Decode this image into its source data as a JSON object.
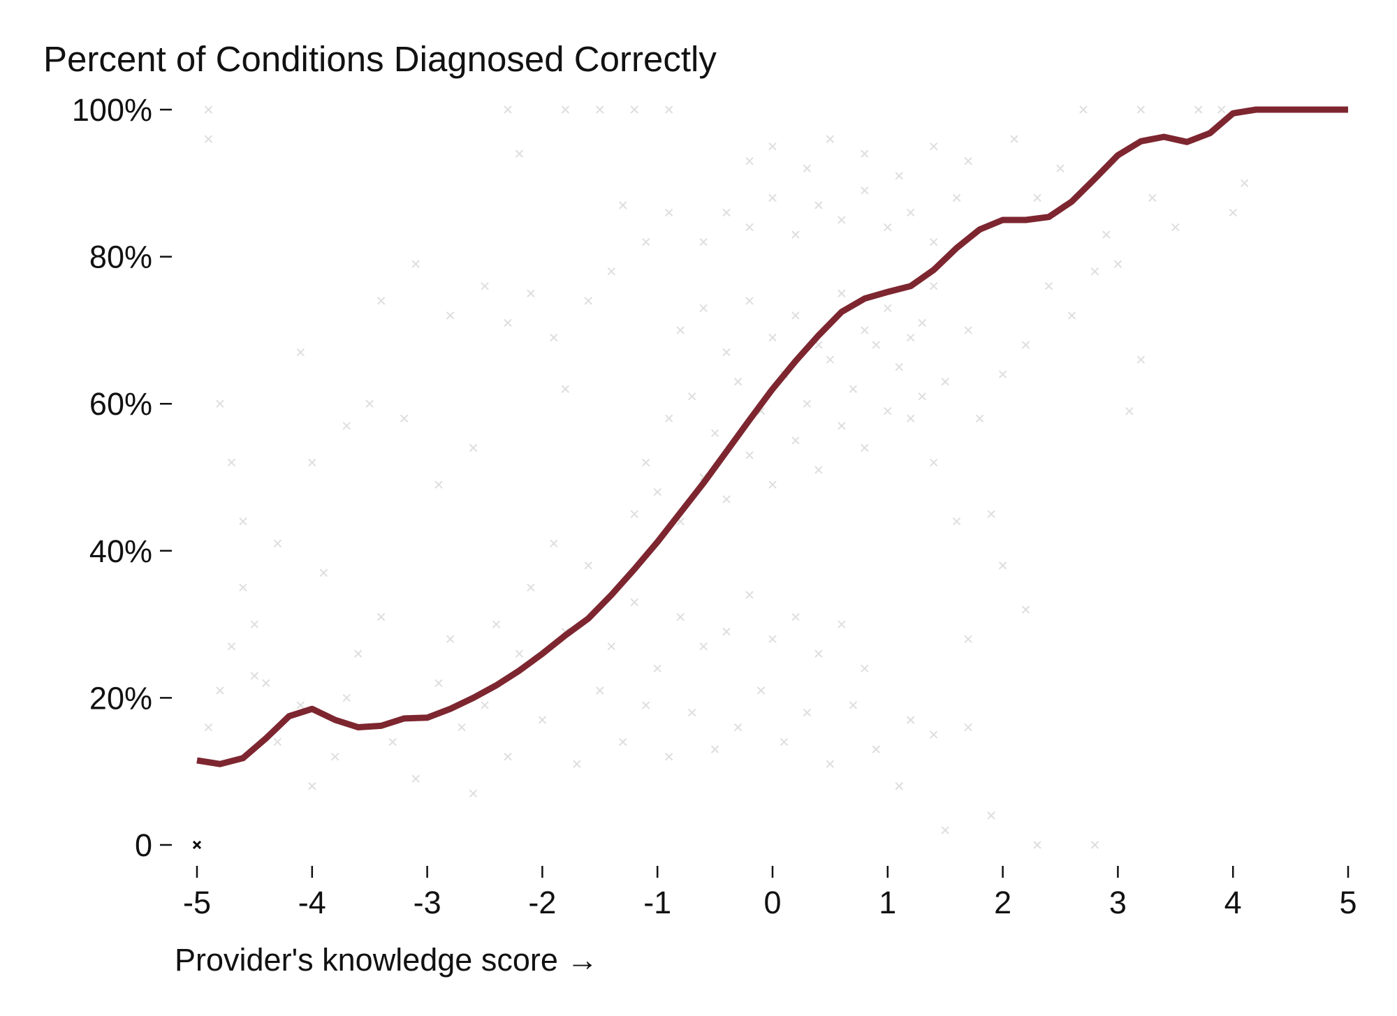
{
  "chart_data": {
    "type": "scatter",
    "title": "Percent of Conditions Diagnosed Correctly",
    "xlabel": "Provider's knowledge score →",
    "ylabel": "",
    "xlim": [
      -5,
      5
    ],
    "ylim": [
      0,
      100
    ],
    "x_ticks": [
      {
        "value": -5,
        "label": "-5"
      },
      {
        "value": -4,
        "label": "-4"
      },
      {
        "value": -3,
        "label": "-3"
      },
      {
        "value": -2,
        "label": "-2"
      },
      {
        "value": -1,
        "label": "-1"
      },
      {
        "value": 0,
        "label": "0"
      },
      {
        "value": 1,
        "label": "1"
      },
      {
        "value": 2,
        "label": "2"
      },
      {
        "value": 3,
        "label": "3"
      },
      {
        "value": 4,
        "label": "4"
      },
      {
        "value": 5,
        "label": "5"
      }
    ],
    "y_ticks": [
      {
        "value": 0,
        "label": "0"
      },
      {
        "value": 20,
        "label": "20%"
      },
      {
        "value": 40,
        "label": "40%"
      },
      {
        "value": 60,
        "label": "60%"
      },
      {
        "value": 80,
        "label": "80%"
      },
      {
        "value": 100,
        "label": "100%"
      }
    ],
    "grid": false,
    "legend": "none",
    "scatter_marker": "x",
    "scatter_color": "#000000",
    "trend_color": "#7d2630",
    "scatter_points": [
      [
        -4.9,
        96
      ],
      [
        -4.8,
        60
      ],
      [
        -4.7,
        52
      ],
      [
        -4.6,
        44
      ],
      [
        -4.5,
        30
      ],
      [
        -4.4,
        22
      ],
      [
        -4.3,
        41
      ],
      [
        -4.1,
        67
      ],
      [
        -4.0,
        52
      ],
      [
        -3.9,
        37
      ],
      [
        -3.7,
        57
      ],
      [
        -3.5,
        60
      ],
      [
        -3.4,
        74
      ],
      [
        -3.2,
        58
      ],
      [
        -3.1,
        79
      ],
      [
        -2.9,
        49
      ],
      [
        -2.8,
        72
      ],
      [
        -2.6,
        54
      ],
      [
        -2.5,
        76
      ],
      [
        -2.3,
        71
      ],
      [
        -2.1,
        75
      ],
      [
        -1.9,
        69
      ],
      [
        -1.8,
        62
      ],
      [
        -1.6,
        74
      ],
      [
        -1.4,
        78
      ],
      [
        -1.3,
        87
      ],
      [
        -1.1,
        82
      ],
      [
        -0.9,
        86
      ],
      [
        -2.2,
        94
      ],
      [
        -2.3,
        100
      ],
      [
        -1.8,
        100
      ],
      [
        -1.5,
        100
      ],
      [
        -1.2,
        100
      ],
      [
        -0.9,
        100
      ],
      [
        -4.9,
        100
      ],
      [
        2.1,
        96
      ],
      [
        2.5,
        92
      ],
      [
        2.7,
        100
      ],
      [
        3.2,
        100
      ],
      [
        3.7,
        100
      ],
      [
        3.9,
        100
      ],
      [
        4.1,
        90
      ],
      [
        4.0,
        86
      ],
      [
        3.5,
        84
      ],
      [
        3.3,
        88
      ],
      [
        3.0,
        79
      ],
      [
        2.9,
        83
      ],
      [
        2.6,
        72
      ],
      [
        2.4,
        76
      ],
      [
        2.2,
        68
      ],
      [
        2.0,
        64
      ],
      [
        1.8,
        58
      ],
      [
        3.1,
        59
      ],
      [
        3.2,
        66
      ],
      [
        2.8,
        78
      ],
      [
        2.3,
        88
      ],
      [
        1.7,
        70
      ],
      [
        1.5,
        63
      ],
      [
        1.3,
        61
      ],
      [
        1.9,
        45
      ],
      [
        2.0,
        38
      ],
      [
        2.2,
        32
      ],
      [
        1.7,
        28
      ],
      [
        1.6,
        44
      ],
      [
        1.4,
        52
      ],
      [
        1.2,
        17
      ],
      [
        1.4,
        15
      ],
      [
        1.7,
        16
      ],
      [
        1.9,
        4
      ],
      [
        2.3,
        0
      ],
      [
        2.8,
        0
      ],
      [
        1.5,
        2
      ],
      [
        1.1,
        8
      ],
      [
        -4.9,
        16
      ],
      [
        -4.8,
        21
      ],
      [
        -4.7,
        27
      ],
      [
        -4.6,
        35
      ],
      [
        -4.5,
        23
      ],
      [
        -4.3,
        14
      ],
      [
        -4.1,
        19
      ],
      [
        -4.0,
        8
      ],
      [
        -3.8,
        12
      ],
      [
        -3.7,
        20
      ],
      [
        -3.6,
        26
      ],
      [
        -3.4,
        31
      ],
      [
        -3.3,
        14
      ],
      [
        -3.1,
        9
      ],
      [
        -2.9,
        22
      ],
      [
        -2.8,
        28
      ],
      [
        -2.7,
        16
      ],
      [
        -2.6,
        7
      ],
      [
        -2.5,
        19
      ],
      [
        -2.4,
        30
      ],
      [
        -2.3,
        12
      ],
      [
        -2.2,
        26
      ],
      [
        -2.1,
        35
      ],
      [
        -2.0,
        17
      ],
      [
        -1.9,
        41
      ],
      [
        -1.8,
        29
      ],
      [
        -1.7,
        11
      ],
      [
        -1.6,
        38
      ],
      [
        -1.5,
        21
      ],
      [
        -1.4,
        27
      ],
      [
        -1.3,
        14
      ],
      [
        -1.2,
        33
      ],
      [
        -1.1,
        19
      ],
      [
        -1.0,
        24
      ],
      [
        -0.9,
        12
      ],
      [
        -0.8,
        31
      ],
      [
        -0.7,
        18
      ],
      [
        -0.6,
        27
      ],
      [
        -0.5,
        13
      ],
      [
        -0.4,
        29
      ],
      [
        -0.3,
        16
      ],
      [
        -0.2,
        34
      ],
      [
        -0.1,
        21
      ],
      [
        0.0,
        28
      ],
      [
        0.1,
        14
      ],
      [
        0.2,
        31
      ],
      [
        0.3,
        18
      ],
      [
        0.4,
        26
      ],
      [
        0.5,
        11
      ],
      [
        0.6,
        30
      ],
      [
        0.7,
        19
      ],
      [
        0.8,
        24
      ],
      [
        0.9,
        13
      ],
      [
        -1.2,
        45
      ],
      [
        -1.1,
        52
      ],
      [
        -1.0,
        48
      ],
      [
        -0.9,
        58
      ],
      [
        -0.8,
        44
      ],
      [
        -0.7,
        61
      ],
      [
        -0.6,
        50
      ],
      [
        -0.5,
        56
      ],
      [
        -0.4,
        47
      ],
      [
        -0.3,
        63
      ],
      [
        -0.2,
        53
      ],
      [
        -0.1,
        59
      ],
      [
        0.0,
        49
      ],
      [
        0.1,
        64
      ],
      [
        0.2,
        55
      ],
      [
        0.3,
        60
      ],
      [
        0.4,
        51
      ],
      [
        0.5,
        66
      ],
      [
        0.6,
        57
      ],
      [
        0.7,
        62
      ],
      [
        0.8,
        54
      ],
      [
        0.9,
        68
      ],
      [
        1.0,
        59
      ],
      [
        1.1,
        65
      ],
      [
        1.2,
        58
      ],
      [
        1.3,
        71
      ],
      [
        -0.8,
        70
      ],
      [
        -0.6,
        73
      ],
      [
        -0.4,
        67
      ],
      [
        -0.2,
        74
      ],
      [
        0.0,
        69
      ],
      [
        0.2,
        72
      ],
      [
        0.4,
        68
      ],
      [
        0.6,
        75
      ],
      [
        0.8,
        70
      ],
      [
        1.0,
        73
      ],
      [
        1.2,
        69
      ],
      [
        1.4,
        76
      ],
      [
        -0.6,
        82
      ],
      [
        -0.4,
        86
      ],
      [
        -0.2,
        84
      ],
      [
        0.0,
        88
      ],
      [
        0.2,
        83
      ],
      [
        0.4,
        87
      ],
      [
        0.6,
        85
      ],
      [
        0.8,
        89
      ],
      [
        1.0,
        84
      ],
      [
        1.2,
        86
      ],
      [
        1.4,
        82
      ],
      [
        1.6,
        88
      ],
      [
        -0.2,
        93
      ],
      [
        0.0,
        95
      ],
      [
        0.3,
        92
      ],
      [
        0.5,
        96
      ],
      [
        0.8,
        94
      ],
      [
        1.1,
        91
      ],
      [
        1.4,
        95
      ],
      [
        1.7,
        93
      ]
    ],
    "trend_line": {
      "x": [
        -5.0,
        -4.8,
        -4.6,
        -4.4,
        -4.2,
        -4.0,
        -3.8,
        -3.6,
        -3.4,
        -3.2,
        -3.0,
        -2.8,
        -2.6,
        -2.4,
        -2.2,
        -2.0,
        -1.8,
        -1.6,
        -1.4,
        -1.2,
        -1.0,
        -0.8,
        -0.6,
        -0.4,
        -0.2,
        0.0,
        0.2,
        0.4,
        0.6,
        0.8,
        1.0,
        1.2,
        1.4,
        1.6,
        1.8,
        2.0,
        2.2,
        2.4,
        2.6,
        2.8,
        3.0,
        3.2,
        3.4,
        3.6,
        3.8,
        4.0,
        4.2,
        4.4,
        4.6,
        4.8,
        5.0
      ],
      "y": [
        11.5,
        11.0,
        11.8,
        14.5,
        17.5,
        18.5,
        17.0,
        16.0,
        16.2,
        17.2,
        17.3,
        18.5,
        20.0,
        21.7,
        23.7,
        26.0,
        28.5,
        30.8,
        34.0,
        37.5,
        41.2,
        45.2,
        49.2,
        53.5,
        57.8,
        62.0,
        65.8,
        69.3,
        72.5,
        74.3,
        75.2,
        76.0,
        78.2,
        81.2,
        83.7,
        85.0,
        85.0,
        85.4,
        87.5,
        90.6,
        93.8,
        95.7,
        96.3,
        95.6,
        96.8,
        99.5,
        100.0,
        100.0,
        100.0,
        100.0,
        100.0
      ]
    }
  }
}
